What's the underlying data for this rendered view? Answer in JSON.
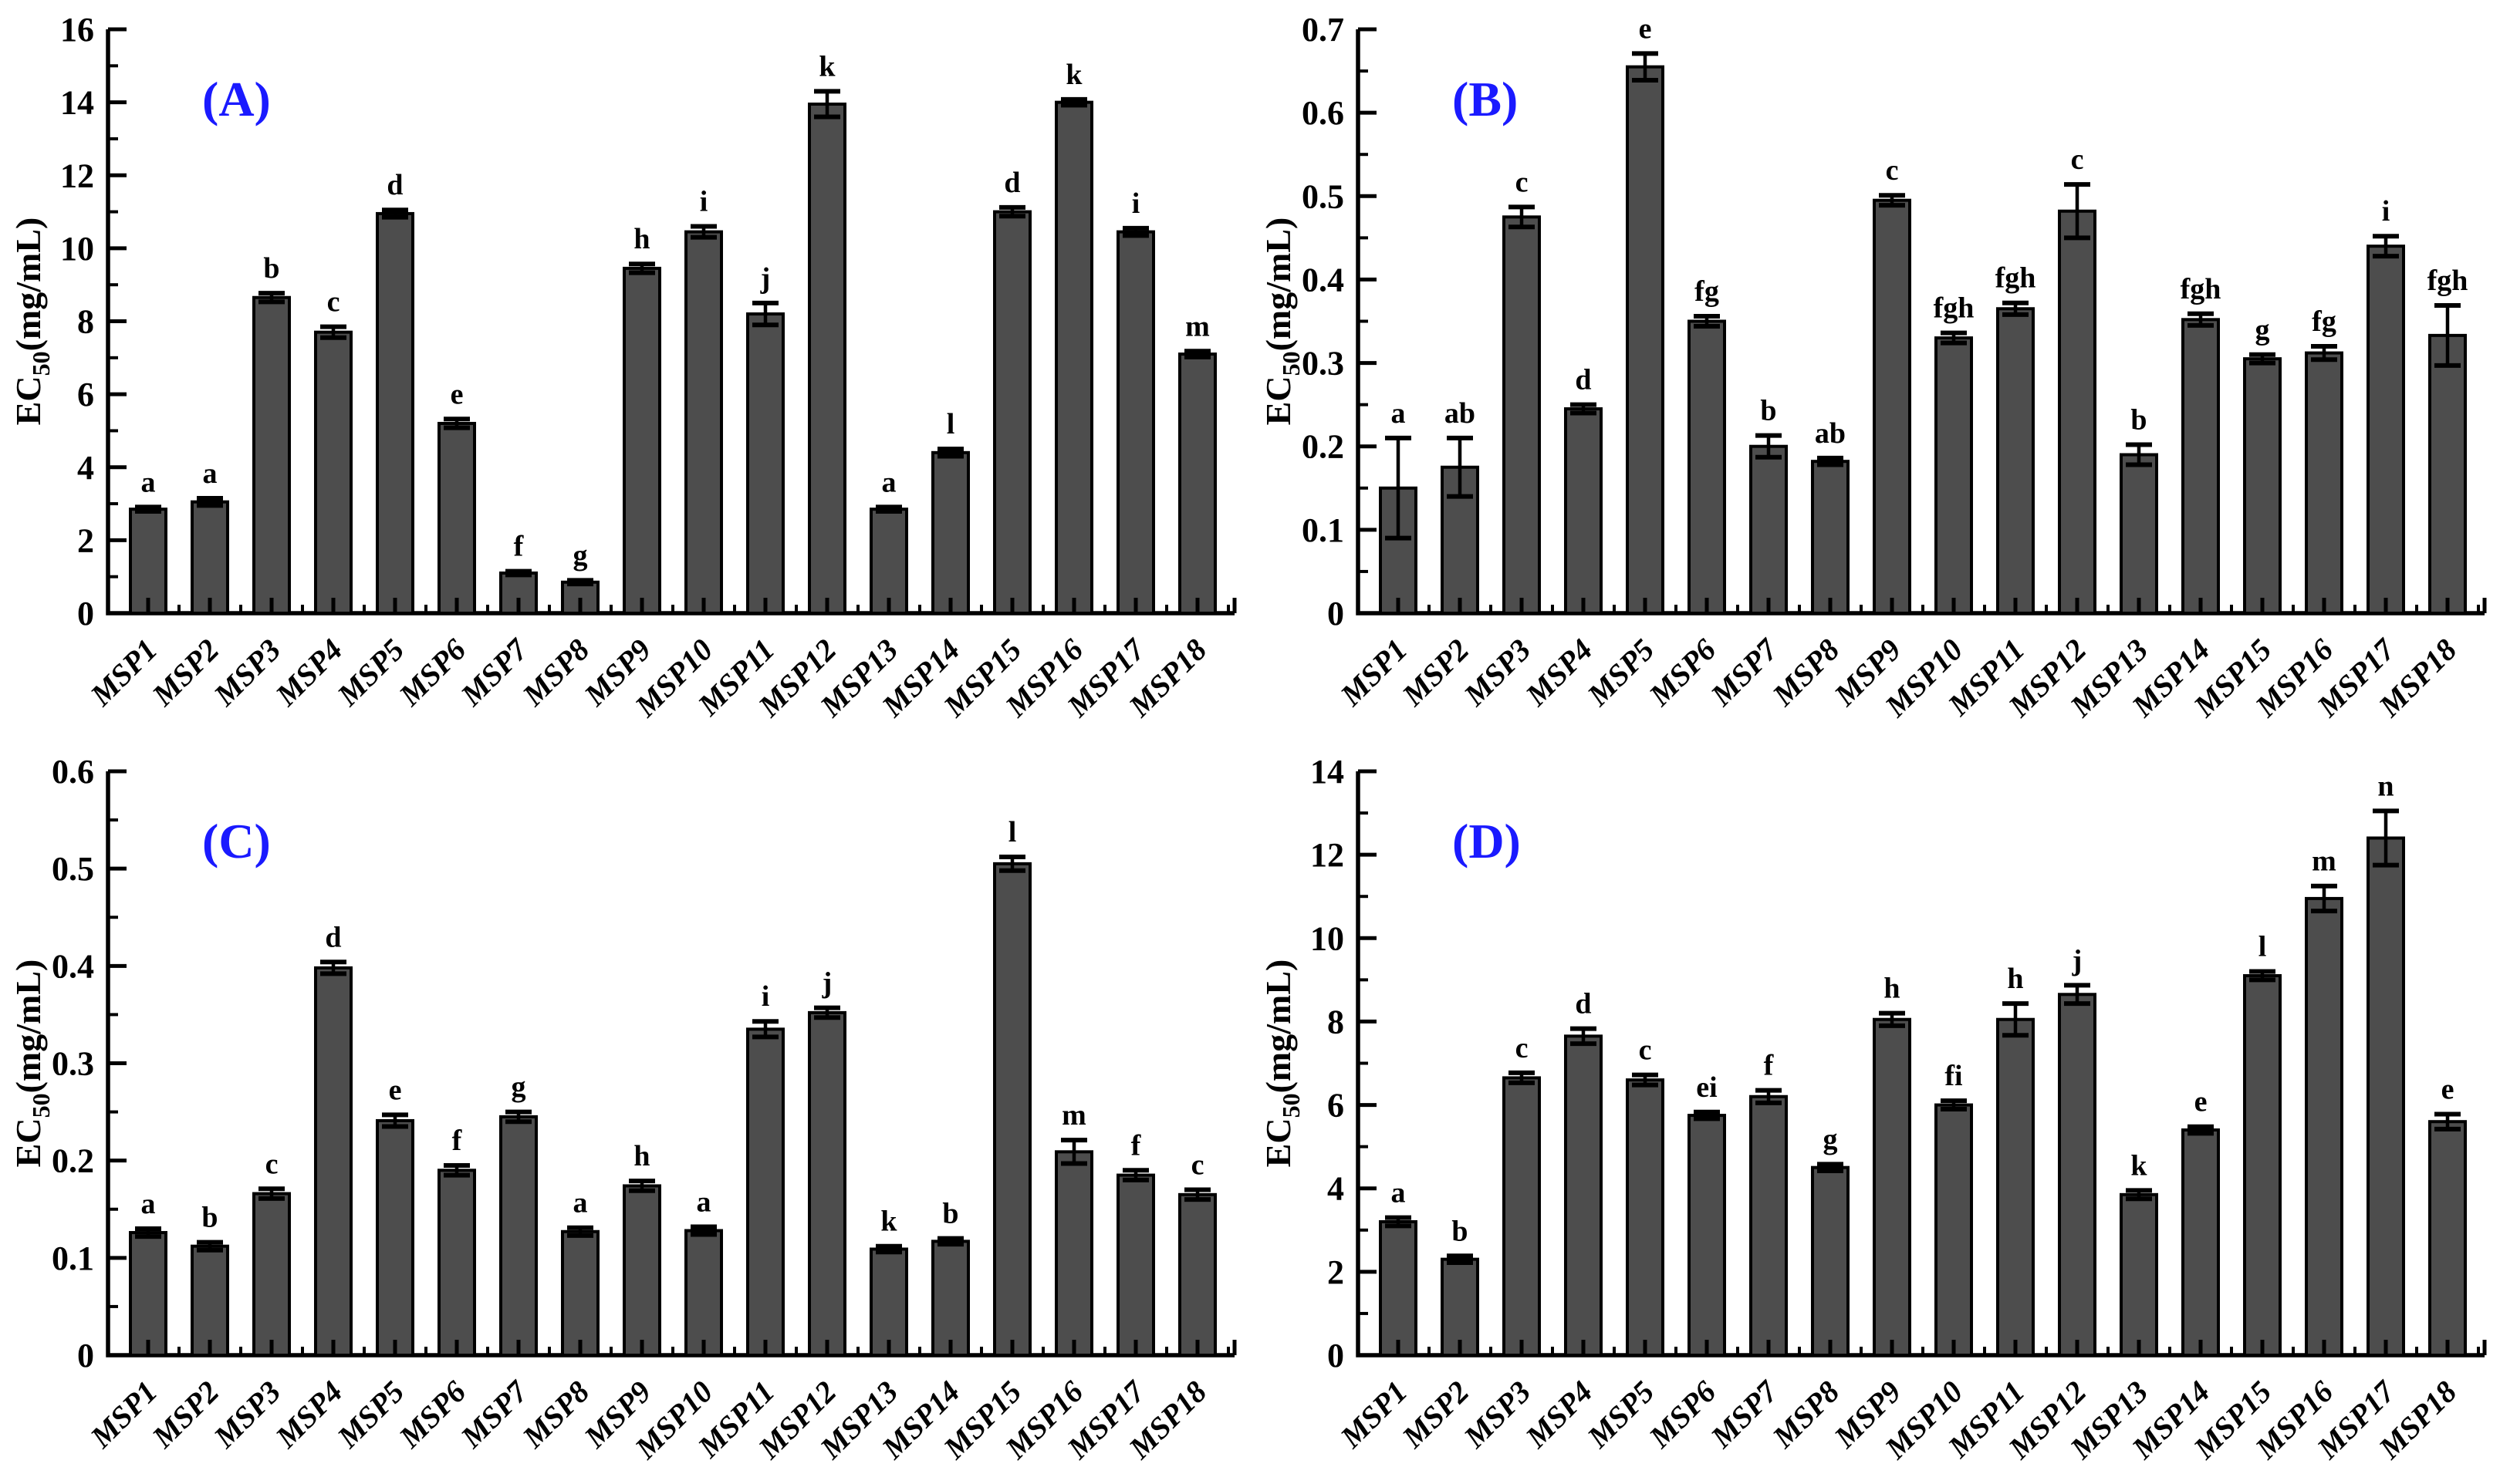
{
  "figure": {
    "background": "#ffffff",
    "description": "Four-panel bar chart figure of EC50 values for mushroom polysaccharides MSP1-MSP18"
  },
  "styles": {
    "bar_fill": "#4d4d4d",
    "bar_stroke": "#000000",
    "error_color": "#000000",
    "axis_color": "#000000",
    "text_color": "#000000",
    "panel_label_color": "#1a1aff"
  },
  "chart_data": [
    {
      "type": "bar",
      "panel_label": "(A)",
      "ylabel": "EC50(mg/mL)",
      "ylabel_parts": {
        "main": "EC",
        "sub": "50",
        "rest": "(mg/mL)"
      },
      "xlabel": "",
      "ylim": [
        0,
        16
      ],
      "ytick_step": 2,
      "yminor_step": 1,
      "ytick_decimals": 0,
      "grid": false,
      "legend": null,
      "categories": [
        "MSP1",
        "MSP2",
        "MSP3",
        "MSP4",
        "MSP5",
        "MSP6",
        "MSP7",
        "MSP8",
        "MSP9",
        "MSP10",
        "MSP11",
        "MSP12",
        "MSP13",
        "MSP14",
        "MSP15",
        "MSP16",
        "MSP17",
        "MSP18"
      ],
      "values": [
        2.85,
        3.05,
        8.65,
        7.7,
        10.95,
        5.2,
        1.1,
        0.85,
        9.45,
        10.45,
        8.2,
        13.95,
        2.85,
        4.4,
        11.0,
        14.0,
        10.45,
        7.1
      ],
      "errors": [
        0.06,
        0.1,
        0.12,
        0.15,
        0.1,
        0.12,
        0.05,
        0.05,
        0.12,
        0.15,
        0.3,
        0.35,
        0.06,
        0.1,
        0.12,
        0.08,
        0.1,
        0.08
      ],
      "letters": [
        "a",
        "a",
        "b",
        "c",
        "d",
        "e",
        "f",
        "g",
        "h",
        "i",
        "j",
        "k",
        "a",
        "l",
        "d",
        "k",
        "i",
        "m"
      ]
    },
    {
      "type": "bar",
      "panel_label": "(B)",
      "ylabel": "EC50(mg/mL)",
      "ylabel_parts": {
        "main": "EC",
        "sub": "50",
        "rest": "(mg/mL)"
      },
      "xlabel": "",
      "ylim": [
        0,
        0.7
      ],
      "ytick_step": 0.1,
      "yminor_step": 0.05,
      "ytick_decimals": 1,
      "grid": false,
      "legend": null,
      "categories": [
        "MSP1",
        "MSP2",
        "MSP3",
        "MSP4",
        "MSP5",
        "MSP6",
        "MSP7",
        "MSP8",
        "MSP9",
        "MSP10",
        "MSP11",
        "MSP12",
        "MSP13",
        "MSP14",
        "MSP15",
        "MSP16",
        "MSP17",
        "MSP18"
      ],
      "values": [
        0.15,
        0.175,
        0.475,
        0.245,
        0.655,
        0.35,
        0.2,
        0.182,
        0.495,
        0.33,
        0.365,
        0.482,
        0.19,
        0.352,
        0.305,
        0.312,
        0.44,
        0.333
      ],
      "errors": [
        0.06,
        0.035,
        0.012,
        0.005,
        0.016,
        0.006,
        0.013,
        0.004,
        0.006,
        0.006,
        0.007,
        0.032,
        0.012,
        0.007,
        0.005,
        0.008,
        0.012,
        0.036
      ],
      "letters": [
        "a",
        "ab",
        "c",
        "d",
        "e",
        "fg",
        "b",
        "ab",
        "c",
        "fgh",
        "fgh",
        "c",
        "b",
        "fgh",
        "g",
        "fg",
        "i",
        "fgh"
      ]
    },
    {
      "type": "bar",
      "panel_label": "(C)",
      "ylabel": "EC50(mg/mL)",
      "ylabel_parts": {
        "main": "EC",
        "sub": "50",
        "rest": "(mg/mL)"
      },
      "xlabel": "",
      "ylim": [
        0,
        0.6
      ],
      "ytick_step": 0.1,
      "yminor_step": 0.05,
      "ytick_decimals": 1,
      "grid": false,
      "legend": null,
      "categories": [
        "MSP1",
        "MSP2",
        "MSP3",
        "MSP4",
        "MSP5",
        "MSP6",
        "MSP7",
        "MSP8",
        "MSP9",
        "MSP10",
        "MSP11",
        "MSP12",
        "MSP13",
        "MSP14",
        "MSP15",
        "MSP16",
        "MSP17",
        "MSP18"
      ],
      "values": [
        0.126,
        0.112,
        0.166,
        0.398,
        0.241,
        0.19,
        0.245,
        0.127,
        0.174,
        0.128,
        0.335,
        0.352,
        0.109,
        0.117,
        0.505,
        0.209,
        0.185,
        0.165
      ],
      "errors": [
        0.004,
        0.004,
        0.005,
        0.006,
        0.006,
        0.005,
        0.005,
        0.004,
        0.005,
        0.004,
        0.008,
        0.005,
        0.003,
        0.003,
        0.007,
        0.012,
        0.005,
        0.005
      ],
      "letters": [
        "a",
        "b",
        "c",
        "d",
        "e",
        "f",
        "g",
        "a",
        "h",
        "a",
        "i",
        "j",
        "k",
        "b",
        "l",
        "m",
        "f",
        "c"
      ]
    },
    {
      "type": "bar",
      "panel_label": "(D)",
      "ylabel": "EC50(mg/mL)",
      "ylabel_parts": {
        "main": "EC",
        "sub": "50",
        "rest": "(mg/mL)"
      },
      "xlabel": "",
      "ylim": [
        0,
        14
      ],
      "ytick_step": 2,
      "yminor_step": 1,
      "ytick_decimals": 0,
      "grid": false,
      "legend": null,
      "categories": [
        "MSP1",
        "MSP2",
        "MSP3",
        "MSP4",
        "MSP5",
        "MSP6",
        "MSP7",
        "MSP8",
        "MSP9",
        "MSP10",
        "MSP11",
        "MSP12",
        "MSP13",
        "MSP14",
        "MSP15",
        "MSP16",
        "MSP17",
        "MSP18"
      ],
      "values": [
        3.2,
        2.3,
        6.65,
        7.65,
        6.6,
        5.75,
        6.2,
        4.5,
        8.05,
        6.0,
        8.05,
        8.65,
        3.85,
        5.4,
        9.1,
        10.95,
        12.4,
        5.6
      ],
      "errors": [
        0.1,
        0.08,
        0.12,
        0.18,
        0.12,
        0.08,
        0.15,
        0.08,
        0.15,
        0.1,
        0.38,
        0.22,
        0.1,
        0.08,
        0.1,
        0.3,
        0.65,
        0.18
      ],
      "letters": [
        "a",
        "b",
        "c",
        "d",
        "c",
        "ei",
        "f",
        "g",
        "h",
        "fi",
        "h",
        "j",
        "k",
        "e",
        "l",
        "m",
        "n",
        "e"
      ]
    }
  ]
}
